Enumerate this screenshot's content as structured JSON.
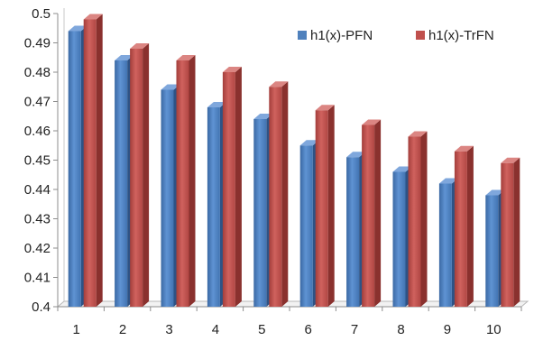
{
  "chart_data": {
    "type": "bar",
    "title": "",
    "xlabel": "",
    "ylabel": "",
    "categories": [
      "1",
      "2",
      "3",
      "4",
      "5",
      "6",
      "7",
      "8",
      "9",
      "10"
    ],
    "series": [
      {
        "name": "h1(x)-PFN",
        "color": "#4f81bd",
        "values": [
          0.494,
          0.484,
          0.474,
          0.468,
          0.464,
          0.455,
          0.451,
          0.446,
          0.442,
          0.438
        ]
      },
      {
        "name": "h1(x)-TrFN",
        "color": "#c0504d",
        "values": [
          0.498,
          0.488,
          0.484,
          0.48,
          0.475,
          0.467,
          0.462,
          0.458,
          0.453,
          0.449
        ]
      }
    ],
    "ylim": [
      0.4,
      0.5
    ],
    "yticks": [
      "0.4",
      "0.41",
      "0.42",
      "0.43",
      "0.44",
      "0.45",
      "0.46",
      "0.47",
      "0.48",
      "0.49",
      "0.5"
    ],
    "grid": false,
    "legend_position": "top-right",
    "style": "3d-column"
  }
}
